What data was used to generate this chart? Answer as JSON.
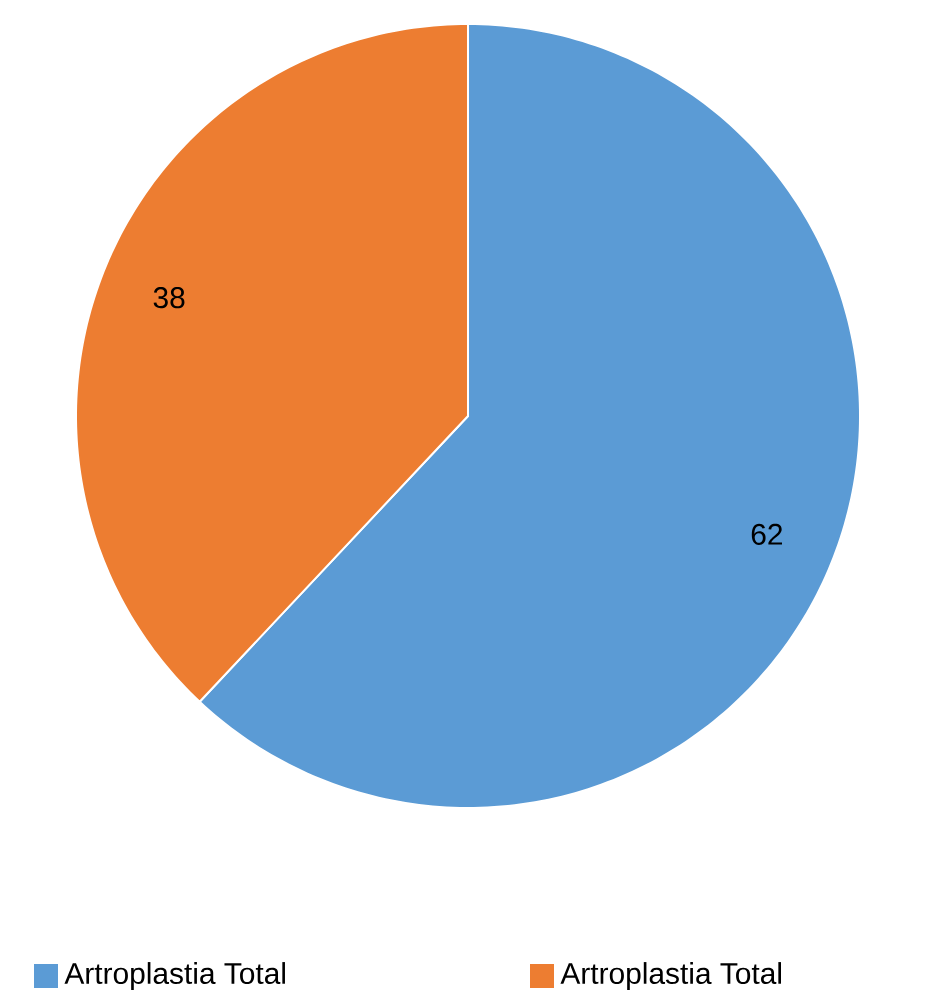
{
  "chart_data": {
    "type": "pie",
    "categories": [
      "Artroplastia Total",
      "Artroplastia Total"
    ],
    "values": [
      62,
      38
    ],
    "colors": [
      "#5b9bd5",
      "#ed7d31"
    ],
    "data_labels": true,
    "legend": "bottom"
  }
}
